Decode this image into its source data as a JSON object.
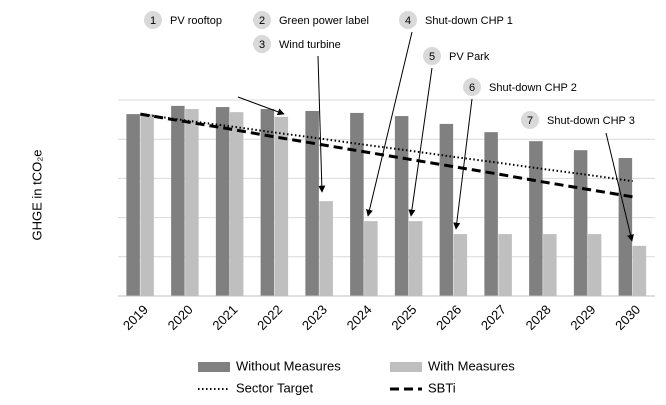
{
  "chart_data": {
    "type": "bar",
    "y_label": "GHGE in tCO₂e",
    "categories": [
      "2019",
      "2020",
      "2021",
      "2022",
      "2023",
      "2024",
      "2025",
      "2026",
      "2027",
      "2028",
      "2029",
      "2030"
    ],
    "series": [
      {
        "name": "Without Measures",
        "type": "bar",
        "color": "#808080",
        "values": [
          4.64,
          4.85,
          4.82,
          4.77,
          4.72,
          4.67,
          4.59,
          4.39,
          4.18,
          3.95,
          3.72,
          3.52
        ]
      },
      {
        "name": "With Measures",
        "type": "bar",
        "color": "#bfbfbf",
        "values": [
          4.64,
          4.77,
          4.69,
          4.57,
          2.42,
          1.91,
          1.91,
          1.58,
          1.58,
          1.58,
          1.58,
          1.28
        ]
      },
      {
        "name": "Sector Target",
        "type": "line",
        "style": "dotted",
        "color": "#000000",
        "values": [
          4.64,
          4.48,
          4.33,
          4.17,
          4.02,
          3.86,
          3.71,
          3.55,
          3.4,
          3.24,
          3.09,
          2.93
        ]
      },
      {
        "name": "SBTi",
        "type": "line",
        "style": "dashed",
        "color": "#000000",
        "values": [
          4.64,
          4.45,
          4.26,
          4.06,
          3.87,
          3.68,
          3.49,
          3.3,
          3.11,
          2.91,
          2.72,
          2.53
        ]
      }
    ],
    "ylim": [
      0,
      5
    ],
    "yticks": [
      0,
      1,
      2,
      3,
      4,
      5
    ],
    "grid": true,
    "annotations": [
      {
        "number": "1",
        "text": "PV rooftop"
      },
      {
        "number": "2",
        "text": "Green power label"
      },
      {
        "number": "3",
        "text": "Wind turbine"
      },
      {
        "number": "4",
        "text": "Shut-down CHP 1"
      },
      {
        "number": "5",
        "text": "PV Park"
      },
      {
        "number": "6",
        "text": "Shut-down CHP 2"
      },
      {
        "number": "7",
        "text": "Shut-down CHP 3"
      }
    ]
  }
}
